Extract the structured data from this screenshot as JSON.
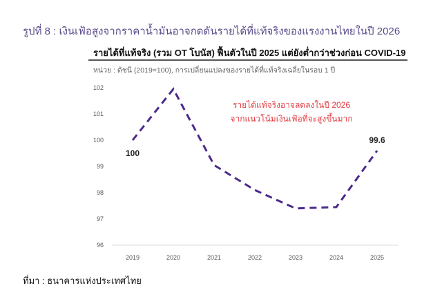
{
  "figure_title": "รูปที่ 8 : เงินเฟ้อสูงจากราคาน้ำมันอาจกดดันรายได้ที่แท้จริงของแรงงานไทยในปี 2026",
  "source": "ที่มา : ธนาคารแห่งประเทศไทย",
  "chart_data": {
    "type": "line",
    "title": "รายได้ที่แท้จริง (รวม OT โบนัส) ฟื้นตัวในปี 2025 แต่ยังต่ำกว่าช่วงก่อน COVID-19",
    "subtitle": "หน่วย : ดัชนี (2019=100), การเปลี่ยนแปลงของรายได้ที่แท้จริงเฉลี่ยในรอบ 1 ปี",
    "categories": [
      "2019",
      "2020",
      "2021",
      "2022",
      "2023",
      "2024",
      "2025"
    ],
    "series": [
      {
        "values": [
          100,
          101.95,
          99.05,
          98.1,
          97.4,
          97.45,
          99.6
        ],
        "color": "#4b2a8a",
        "style": "dashed"
      }
    ],
    "ylim": [
      96,
      102
    ],
    "yticks": [
      "96",
      "97",
      "98",
      "99",
      "100",
      "101",
      "102"
    ],
    "data_labels": [
      {
        "category": "2019",
        "text": "100"
      },
      {
        "category": "2025",
        "text": "99.6"
      }
    ],
    "annotation": [
      "รายได้แท้จริงอาจลดลงในปี 2026",
      "จากแนวโน้มเงินเฟ้อที่จะสูงขึ้นมาก"
    ],
    "annotation_color": "#e0393e",
    "grid": false
  }
}
